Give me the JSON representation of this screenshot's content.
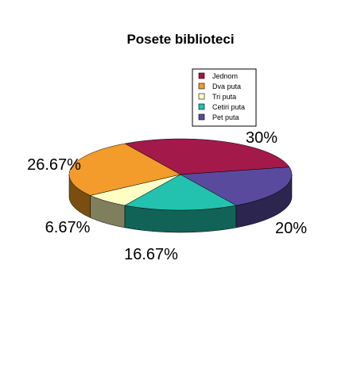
{
  "chart_data": {
    "type": "pie",
    "title": "Posete biblioteci",
    "categories": [
      "Jednom",
      "Dva puta",
      "Tri puta",
      "Cetiri puta",
      "Pet puta"
    ],
    "values": [
      30,
      26.67,
      6.67,
      16.67,
      20
    ],
    "labels": [
      "30%",
      "26.67%",
      "6.67%",
      "16.67%",
      "20%"
    ],
    "colors": [
      "#A3194A",
      "#F39C2B",
      "#FFFFC4",
      "#22C2AE",
      "#5A4A9E"
    ],
    "side_colors": [
      "#4A0E24",
      "#7A4E10",
      "#7F7F5E",
      "#116357",
      "#2B254F"
    ],
    "legend_position": "top-right",
    "style": "3d-pie"
  }
}
